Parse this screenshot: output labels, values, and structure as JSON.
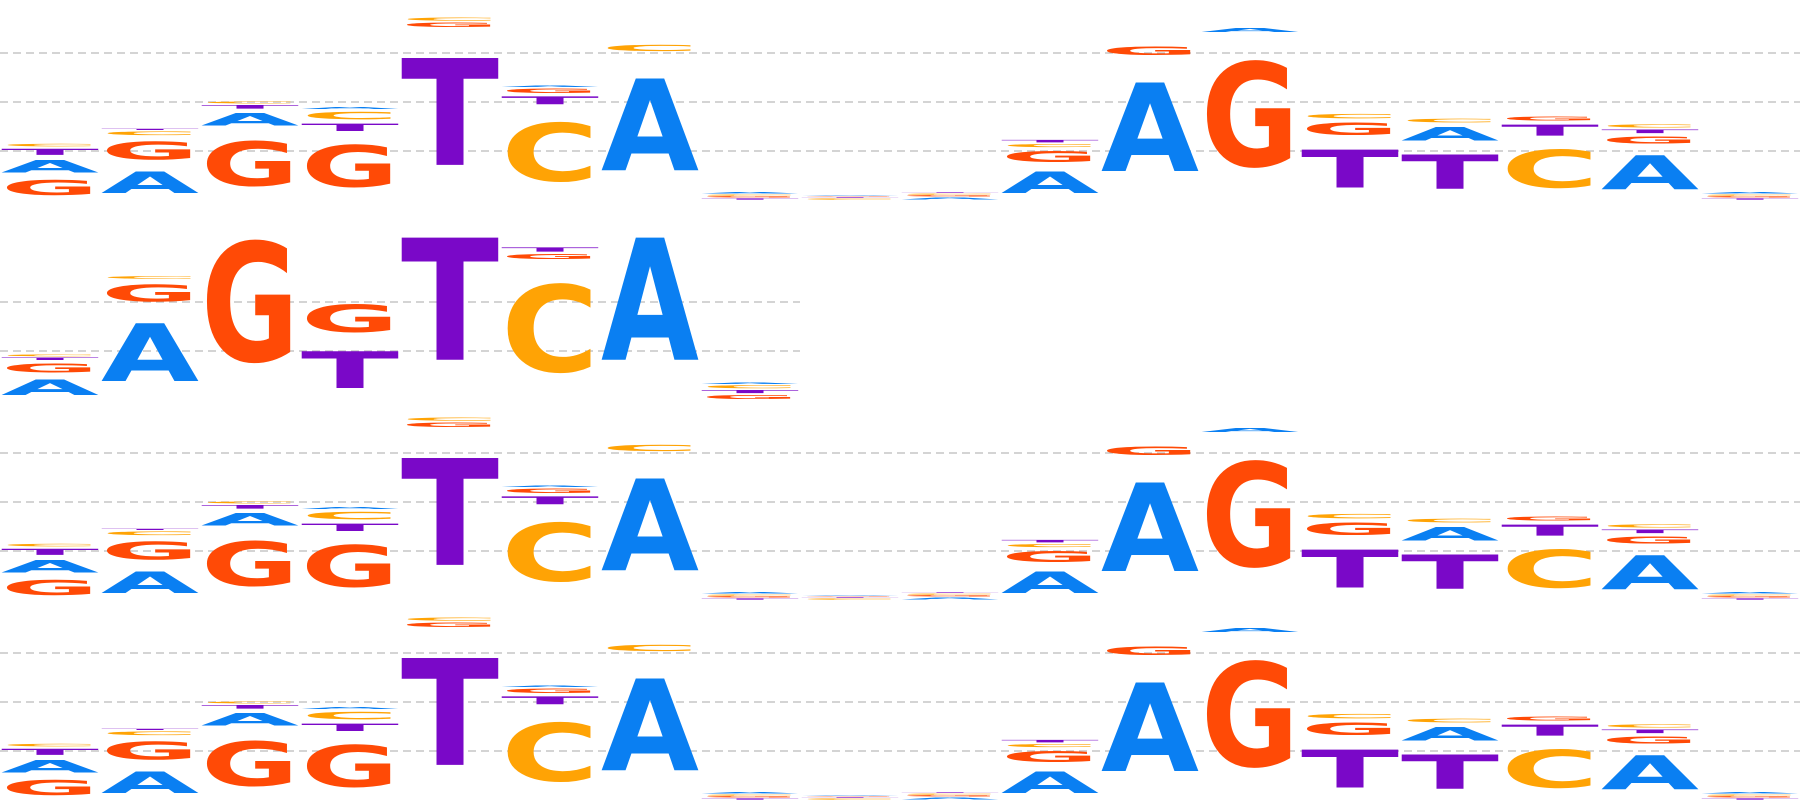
{
  "colors": {
    "A": "#0a7ff2",
    "C": "#ffa305",
    "G": "#ff4a06",
    "T": "#7a08c8",
    "grid": "#bbbbbb",
    "background": "#ffffff"
  },
  "chart_data": [
    {
      "type": "sequence-logo",
      "ylim": [
        0,
        2
      ],
      "gridlines": [
        0.5,
        1.0,
        1.5
      ],
      "columns": [
        {
          "A": 0.2,
          "C": 0.04,
          "G": 0.24,
          "T": 0.1
        },
        {
          "A": 0.35,
          "C": 0.06,
          "G": 0.3,
          "T": 0.02
        },
        {
          "A": 0.2,
          "C": 0.03,
          "G": 0.72,
          "T": 0.06
        },
        {
          "A": 0.03,
          "C": 0.12,
          "G": 0.68,
          "T": 0.12
        },
        {
          "A": 0.0,
          "C": 0.05,
          "G": 0.07,
          "T": 1.75
        },
        {
          "A": 0.02,
          "C": 0.95,
          "G": 0.07,
          "T": 0.13
        },
        {
          "A": 1.5,
          "C": 0.1,
          "G": 0.0,
          "T": 0.0
        },
        {
          "A": 0.02,
          "C": 0.02,
          "G": 0.02,
          "T": 0.02
        },
        {
          "A": 0.01,
          "C": 0.02,
          "G": 0.01,
          "T": 0.01
        },
        {
          "A": 0.03,
          "C": 0.02,
          "G": 0.02,
          "T": 0.01
        },
        {
          "A": 0.35,
          "C": 0.05,
          "G": 0.18,
          "T": 0.04
        },
        {
          "A": 1.45,
          "C": 0.0,
          "G": 0.14,
          "T": 0.0
        },
        {
          "A": 0.06,
          "C": 0.0,
          "G": 1.7,
          "T": 0.0
        },
        {
          "A": 0.0,
          "C": 0.07,
          "G": 0.2,
          "T": 0.62
        },
        {
          "A": 0.22,
          "C": 0.06,
          "G": 0.0,
          "T": 0.56
        },
        {
          "A": 0.0,
          "C": 0.62,
          "G": 0.06,
          "T": 0.18
        },
        {
          "A": 0.55,
          "C": 0.05,
          "G": 0.12,
          "T": 0.06
        },
        {
          "A": 0.02,
          "C": 0.02,
          "G": 0.02,
          "T": 0.02
        }
      ]
    },
    {
      "type": "sequence-logo",
      "ylim": [
        0,
        2
      ],
      "gridlines": [
        0.5,
        1.0
      ],
      "columns": [
        {
          "A": 0.25,
          "C": 0.03,
          "G": 0.15,
          "T": 0.04
        },
        {
          "A": 0.95,
          "C": 0.04,
          "G": 0.28,
          "T": 0.0
        },
        {
          "A": 0.0,
          "C": 0.0,
          "G": 1.95,
          "T": 0.0
        },
        {
          "A": 0.0,
          "C": 0.0,
          "G": 0.45,
          "T": 0.6
        },
        {
          "A": 0.0,
          "C": 0.0,
          "G": 0.0,
          "T": 2.0
        },
        {
          "A": 0.0,
          "C": 1.42,
          "G": 0.08,
          "T": 0.07
        },
        {
          "A": 2.0,
          "C": 0.0,
          "G": 0.0,
          "T": 0.0
        },
        {
          "A": 0.02,
          "C": 0.05,
          "G": 0.06,
          "T": 0.05
        }
      ]
    },
    {
      "type": "sequence-logo",
      "ylim": [
        0,
        2
      ],
      "gridlines": [
        0.5,
        1.0,
        1.5
      ],
      "columns": [
        {
          "A": 0.2,
          "C": 0.04,
          "G": 0.24,
          "T": 0.1
        },
        {
          "A": 0.35,
          "C": 0.06,
          "G": 0.3,
          "T": 0.02
        },
        {
          "A": 0.2,
          "C": 0.03,
          "G": 0.72,
          "T": 0.06
        },
        {
          "A": 0.03,
          "C": 0.12,
          "G": 0.68,
          "T": 0.12
        },
        {
          "A": 0.0,
          "C": 0.05,
          "G": 0.07,
          "T": 1.75
        },
        {
          "A": 0.02,
          "C": 0.95,
          "G": 0.07,
          "T": 0.13
        },
        {
          "A": 1.5,
          "C": 0.1,
          "G": 0.0,
          "T": 0.0
        },
        {
          "A": 0.02,
          "C": 0.02,
          "G": 0.02,
          "T": 0.02
        },
        {
          "A": 0.01,
          "C": 0.02,
          "G": 0.01,
          "T": 0.01
        },
        {
          "A": 0.03,
          "C": 0.02,
          "G": 0.02,
          "T": 0.01
        },
        {
          "A": 0.35,
          "C": 0.05,
          "G": 0.18,
          "T": 0.04
        },
        {
          "A": 1.45,
          "C": 0.0,
          "G": 0.14,
          "T": 0.0
        },
        {
          "A": 0.06,
          "C": 0.0,
          "G": 1.7,
          "T": 0.0
        },
        {
          "A": 0.0,
          "C": 0.07,
          "G": 0.2,
          "T": 0.62
        },
        {
          "A": 0.22,
          "C": 0.06,
          "G": 0.0,
          "T": 0.56
        },
        {
          "A": 0.0,
          "C": 0.62,
          "G": 0.06,
          "T": 0.18
        },
        {
          "A": 0.55,
          "C": 0.05,
          "G": 0.12,
          "T": 0.06
        },
        {
          "A": 0.02,
          "C": 0.02,
          "G": 0.02,
          "T": 0.02
        }
      ]
    },
    {
      "type": "sequence-logo",
      "ylim": [
        0,
        2
      ],
      "gridlines": [
        0.5,
        1.0,
        1.5
      ],
      "columns": [
        {
          "A": 0.2,
          "C": 0.04,
          "G": 0.24,
          "T": 0.1
        },
        {
          "A": 0.35,
          "C": 0.06,
          "G": 0.3,
          "T": 0.02
        },
        {
          "A": 0.2,
          "C": 0.03,
          "G": 0.72,
          "T": 0.06
        },
        {
          "A": 0.03,
          "C": 0.12,
          "G": 0.68,
          "T": 0.12
        },
        {
          "A": 0.0,
          "C": 0.05,
          "G": 0.07,
          "T": 1.75
        },
        {
          "A": 0.02,
          "C": 0.95,
          "G": 0.07,
          "T": 0.13
        },
        {
          "A": 1.5,
          "C": 0.1,
          "G": 0.0,
          "T": 0.0
        },
        {
          "A": 0.02,
          "C": 0.02,
          "G": 0.02,
          "T": 0.02
        },
        {
          "A": 0.01,
          "C": 0.02,
          "G": 0.01,
          "T": 0.01
        },
        {
          "A": 0.03,
          "C": 0.02,
          "G": 0.02,
          "T": 0.01
        },
        {
          "A": 0.35,
          "C": 0.05,
          "G": 0.18,
          "T": 0.04
        },
        {
          "A": 1.45,
          "C": 0.0,
          "G": 0.14,
          "T": 0.0
        },
        {
          "A": 0.06,
          "C": 0.0,
          "G": 1.7,
          "T": 0.0
        },
        {
          "A": 0.0,
          "C": 0.07,
          "G": 0.2,
          "T": 0.62
        },
        {
          "A": 0.22,
          "C": 0.06,
          "G": 0.0,
          "T": 0.56
        },
        {
          "A": 0.0,
          "C": 0.62,
          "G": 0.06,
          "T": 0.18
        },
        {
          "A": 0.55,
          "C": 0.05,
          "G": 0.12,
          "T": 0.06
        },
        {
          "A": 0.02,
          "C": 0.02,
          "G": 0.02,
          "T": 0.02
        }
      ]
    }
  ]
}
